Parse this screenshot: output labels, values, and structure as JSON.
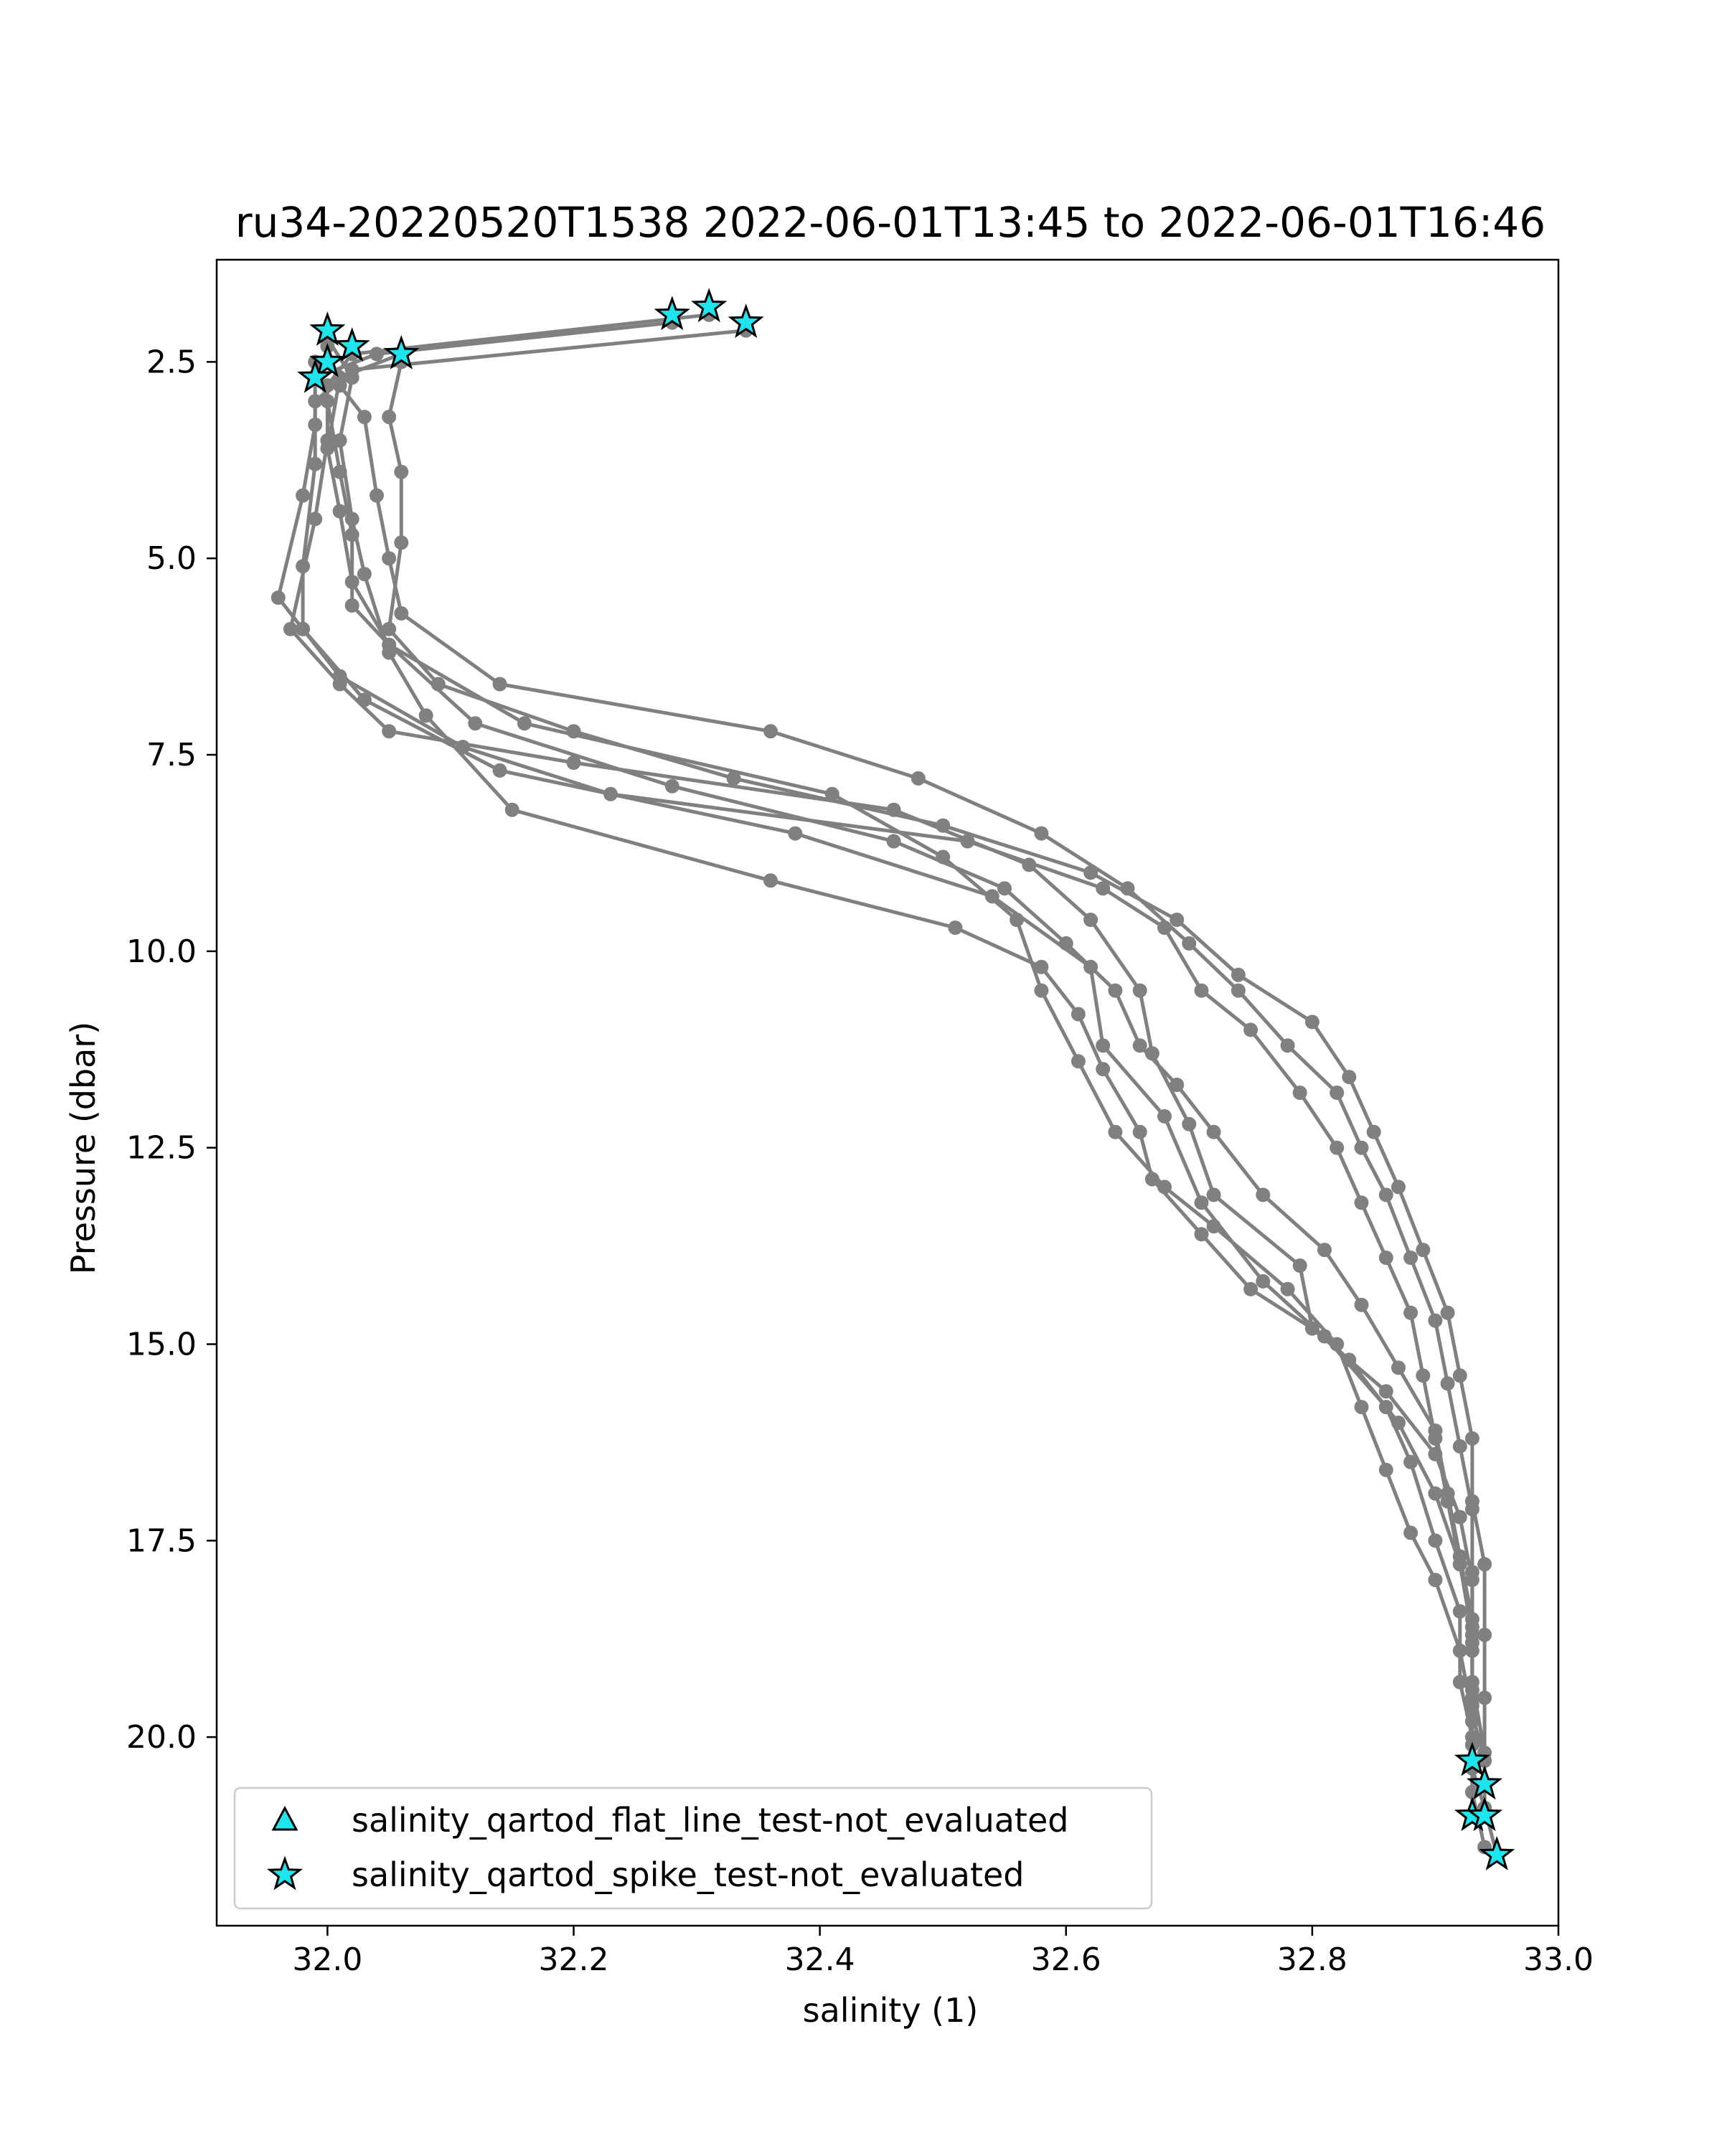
{
  "chart_data": {
    "type": "line",
    "title": "ru34-20220520T1538 2022-06-01T13:45 to 2022-06-01T16:46",
    "xlabel": "salinity (1)",
    "ylabel": "Pressure (dbar)",
    "xlim": [
      31.91,
      33.0
    ],
    "ylim": [
      22.4,
      1.2
    ],
    "y_inverted": true,
    "grid": false,
    "x_ticks": [
      {
        "value": 32.0,
        "label": "32.0"
      },
      {
        "value": 32.2,
        "label": "32.2"
      },
      {
        "value": 32.4,
        "label": "32.4"
      },
      {
        "value": 32.6,
        "label": "32.6"
      },
      {
        "value": 32.8,
        "label": "32.8"
      },
      {
        "value": 33.0,
        "label": "33.0"
      }
    ],
    "y_ticks": [
      {
        "value": 2.5,
        "label": "2.5"
      },
      {
        "value": 5.0,
        "label": "5.0"
      },
      {
        "value": 7.5,
        "label": "7.5"
      },
      {
        "value": 10.0,
        "label": "10.0"
      },
      {
        "value": 12.5,
        "label": "12.5"
      },
      {
        "value": 15.0,
        "label": "15.0"
      },
      {
        "value": 17.5,
        "label": "17.5"
      },
      {
        "value": 20.0,
        "label": "20.0"
      }
    ],
    "line_color": "#808080",
    "flag_color": "#1ee5ed",
    "profiles": [
      [
        [
          32.28,
          2.0
        ],
        [
          32.04,
          2.4
        ],
        [
          31.99,
          2.7
        ],
        [
          31.99,
          3.3
        ],
        [
          31.98,
          4.2
        ],
        [
          31.96,
          5.5
        ],
        [
          31.98,
          5.9
        ],
        [
          32.03,
          6.8
        ],
        [
          32.14,
          7.7
        ],
        [
          32.38,
          8.5
        ],
        [
          32.54,
          9.3
        ],
        [
          32.62,
          10.2
        ],
        [
          32.63,
          11.2
        ],
        [
          32.68,
          12.1
        ],
        [
          32.71,
          13.2
        ],
        [
          32.76,
          14.2
        ],
        [
          32.83,
          15.2
        ],
        [
          32.87,
          16.0
        ],
        [
          32.9,
          16.9
        ],
        [
          32.92,
          17.8
        ],
        [
          32.93,
          18.7
        ],
        [
          32.93,
          19.5
        ],
        [
          32.93,
          20.4
        ],
        [
          32.94,
          20.9
        ],
        [
          32.95,
          21.5
        ]
      ],
      [
        [
          32.31,
          1.9
        ],
        [
          32.02,
          2.4
        ],
        [
          32.0,
          2.8
        ],
        [
          32.0,
          3.5
        ],
        [
          31.99,
          4.5
        ],
        [
          31.97,
          5.9
        ],
        [
          32.01,
          6.6
        ],
        [
          32.05,
          7.2
        ],
        [
          32.2,
          7.6
        ],
        [
          32.46,
          8.2
        ],
        [
          32.57,
          8.9
        ],
        [
          32.62,
          9.6
        ],
        [
          32.66,
          10.5
        ],
        [
          32.67,
          11.3
        ],
        [
          32.7,
          12.2
        ],
        [
          32.72,
          13.1
        ],
        [
          32.79,
          14.0
        ],
        [
          32.8,
          14.8
        ],
        [
          32.86,
          15.6
        ],
        [
          32.9,
          16.4
        ],
        [
          32.92,
          17.2
        ],
        [
          32.93,
          18.0
        ],
        [
          32.93,
          18.9
        ],
        [
          32.93,
          19.8
        ],
        [
          32.93,
          20.7
        ],
        [
          32.94,
          21.4
        ]
      ],
      [
        [
          32.34,
          2.1
        ],
        [
          32.02,
          2.6
        ],
        [
          31.99,
          3.0
        ],
        [
          31.99,
          3.8
        ],
        [
          31.98,
          5.1
        ],
        [
          31.98,
          5.9
        ],
        [
          32.01,
          6.5
        ],
        [
          32.11,
          7.4
        ],
        [
          32.23,
          8.0
        ],
        [
          32.52,
          8.6
        ],
        [
          32.63,
          9.2
        ],
        [
          32.68,
          9.7
        ],
        [
          32.71,
          10.5
        ],
        [
          32.75,
          11.0
        ],
        [
          32.79,
          11.8
        ],
        [
          32.82,
          12.5
        ],
        [
          32.84,
          13.2
        ],
        [
          32.86,
          13.9
        ],
        [
          32.88,
          14.6
        ],
        [
          32.89,
          15.4
        ],
        [
          32.9,
          16.2
        ],
        [
          32.91,
          17.0
        ],
        [
          32.92,
          17.8
        ],
        [
          32.93,
          18.6
        ],
        [
          32.93,
          19.4
        ],
        [
          32.93,
          20.1
        ]
      ],
      [
        [
          32.06,
          2.4
        ],
        [
          32.01,
          2.7
        ],
        [
          32.0,
          3.6
        ],
        [
          32.01,
          4.4
        ],
        [
          32.02,
          5.3
        ],
        [
          32.05,
          6.1
        ],
        [
          32.16,
          7.1
        ],
        [
          32.41,
          8.0
        ],
        [
          32.5,
          8.8
        ],
        [
          32.56,
          9.6
        ],
        [
          32.58,
          10.5
        ],
        [
          32.61,
          11.4
        ],
        [
          32.64,
          12.3
        ],
        [
          32.68,
          13.0
        ],
        [
          32.72,
          13.5
        ],
        [
          32.78,
          14.3
        ],
        [
          32.82,
          15.0
        ],
        [
          32.84,
          15.8
        ],
        [
          32.86,
          16.6
        ],
        [
          32.88,
          17.4
        ],
        [
          32.9,
          18.0
        ],
        [
          32.92,
          18.9
        ],
        [
          32.93,
          19.7
        ],
        [
          32.94,
          20.3
        ],
        [
          32.94,
          20.9
        ]
      ],
      [
        [
          32.0,
          2.2
        ],
        [
          32.02,
          2.7
        ],
        [
          32.01,
          3.5
        ],
        [
          32.02,
          4.5
        ],
        [
          32.03,
          5.2
        ],
        [
          32.05,
          6.2
        ],
        [
          32.08,
          7.0
        ],
        [
          32.15,
          8.2
        ],
        [
          32.36,
          9.1
        ],
        [
          32.51,
          9.7
        ],
        [
          32.58,
          10.2
        ],
        [
          32.61,
          10.8
        ],
        [
          32.63,
          11.5
        ],
        [
          32.66,
          12.3
        ],
        [
          32.67,
          12.9
        ],
        [
          32.71,
          13.6
        ],
        [
          32.75,
          14.3
        ],
        [
          32.81,
          14.9
        ],
        [
          32.86,
          15.8
        ],
        [
          32.88,
          16.5
        ],
        [
          32.9,
          17.5
        ],
        [
          32.92,
          18.4
        ],
        [
          32.92,
          19.3
        ],
        [
          32.93,
          20.0
        ],
        [
          32.93,
          21.0
        ]
      ],
      [
        [
          31.99,
          2.5
        ],
        [
          32.0,
          3.0
        ],
        [
          32.01,
          3.9
        ],
        [
          32.02,
          4.7
        ],
        [
          32.02,
          5.6
        ],
        [
          32.05,
          6.1
        ],
        [
          32.12,
          7.1
        ],
        [
          32.28,
          7.9
        ],
        [
          32.46,
          8.6
        ],
        [
          32.55,
          9.2
        ],
        [
          32.6,
          9.9
        ],
        [
          32.64,
          10.5
        ],
        [
          32.66,
          11.2
        ],
        [
          32.69,
          11.7
        ],
        [
          32.72,
          12.3
        ],
        [
          32.76,
          13.1
        ],
        [
          32.81,
          13.8
        ],
        [
          32.84,
          14.5
        ],
        [
          32.87,
          15.3
        ],
        [
          32.9,
          16.1
        ],
        [
          32.91,
          16.9
        ],
        [
          32.92,
          17.7
        ],
        [
          32.93,
          18.5
        ],
        [
          32.93,
          19.3
        ],
        [
          32.94,
          20.2
        ]
      ],
      [
        [
          32.0,
          2.3
        ],
        [
          32.01,
          2.8
        ],
        [
          32.03,
          3.2
        ],
        [
          32.04,
          4.2
        ],
        [
          32.05,
          5.0
        ],
        [
          32.06,
          5.7
        ],
        [
          32.14,
          6.6
        ],
        [
          32.36,
          7.2
        ],
        [
          32.48,
          7.8
        ],
        [
          32.58,
          8.5
        ],
        [
          32.65,
          9.2
        ],
        [
          32.7,
          9.9
        ],
        [
          32.74,
          10.5
        ],
        [
          32.78,
          11.2
        ],
        [
          32.82,
          11.8
        ],
        [
          32.84,
          12.5
        ],
        [
          32.86,
          13.1
        ],
        [
          32.88,
          13.9
        ],
        [
          32.9,
          14.7
        ],
        [
          32.91,
          15.5
        ],
        [
          32.92,
          16.3
        ],
        [
          32.93,
          17.1
        ],
        [
          32.93,
          17.9
        ],
        [
          32.93,
          18.8
        ],
        [
          32.93,
          19.6
        ]
      ],
      [
        [
          32.06,
          2.5
        ],
        [
          32.05,
          3.2
        ],
        [
          32.06,
          3.9
        ],
        [
          32.06,
          4.8
        ],
        [
          32.05,
          5.9
        ],
        [
          32.09,
          6.6
        ],
        [
          32.2,
          7.2
        ],
        [
          32.33,
          7.8
        ],
        [
          32.5,
          8.4
        ],
        [
          32.62,
          9.0
        ],
        [
          32.69,
          9.6
        ],
        [
          32.74,
          10.3
        ],
        [
          32.8,
          10.9
        ],
        [
          32.83,
          11.6
        ],
        [
          32.85,
          12.3
        ],
        [
          32.87,
          13.0
        ],
        [
          32.89,
          13.8
        ],
        [
          32.91,
          14.6
        ],
        [
          32.92,
          15.4
        ],
        [
          32.93,
          16.2
        ],
        [
          32.93,
          17.0
        ],
        [
          32.94,
          17.8
        ],
        [
          32.94,
          18.7
        ],
        [
          32.94,
          19.5
        ],
        [
          32.94,
          20.3
        ]
      ]
    ],
    "spike_flag_points": [
      [
        32.28,
        1.9
      ],
      [
        32.31,
        1.8
      ],
      [
        32.34,
        2.0
      ],
      [
        32.0,
        2.1
      ],
      [
        32.02,
        2.3
      ],
      [
        32.06,
        2.4
      ],
      [
        32.0,
        2.5
      ],
      [
        31.99,
        2.7
      ],
      [
        32.93,
        20.3
      ],
      [
        32.94,
        20.6
      ],
      [
        32.93,
        21.0
      ],
      [
        32.94,
        21.0
      ],
      [
        32.95,
        21.5
      ]
    ],
    "legend": {
      "placement": "lower-left",
      "entries": [
        {
          "marker": "triangle",
          "label": "salinity_qartod_flat_line_test-not_evaluated"
        },
        {
          "marker": "star",
          "label": "salinity_qartod_spike_test-not_evaluated"
        }
      ]
    }
  }
}
